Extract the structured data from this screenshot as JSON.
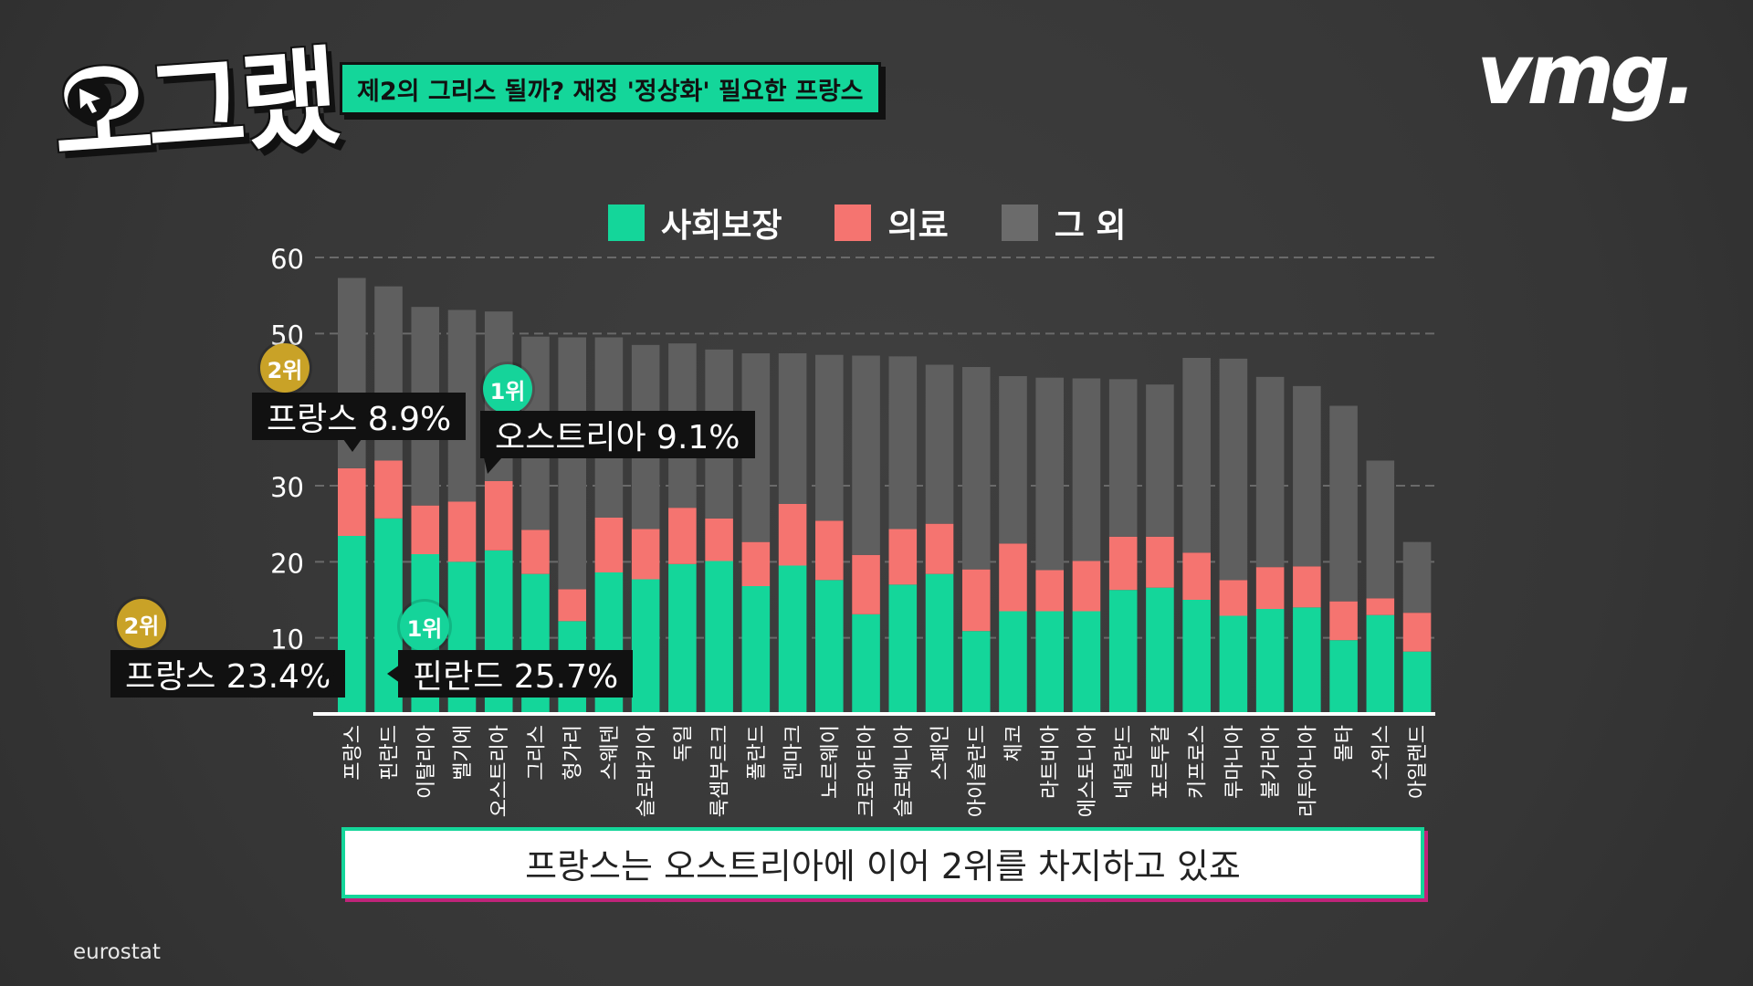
{
  "logo": {
    "text": "오그랬"
  },
  "topic": "제2의 그리스 될까? 재정 '정상화' 필요한 프랑스",
  "brand": "vmg.",
  "colors": {
    "social": "#14d69a",
    "health": "#f57470",
    "other": "#5f5f5f",
    "gold": "#c9a227"
  },
  "legend": [
    {
      "label": "사회보장",
      "color": "#14d69a"
    },
    {
      "label": "의료",
      "color": "#f57470"
    },
    {
      "label": "그 외",
      "color": "#6b6b6b"
    }
  ],
  "chart_data": {
    "type": "bar",
    "stacked": true,
    "title": "",
    "xlabel": "",
    "ylabel": "",
    "ylim": [
      0,
      60
    ],
    "yticks": [
      10,
      20,
      30,
      50,
      60
    ],
    "grid": true,
    "legend_position": "top",
    "categories": [
      "프랑스",
      "핀란드",
      "이탈리아",
      "벨기에",
      "오스트리아",
      "그리스",
      "헝가리",
      "스웨덴",
      "슬로바키아",
      "독일",
      "룩셈부르크",
      "폴란드",
      "덴마크",
      "노르웨이",
      "크로아티아",
      "슬로베니아",
      "스페인",
      "아이슬란드",
      "체코",
      "라트비아",
      "에스토니아",
      "네덜란드",
      "포르투갈",
      "키프로스",
      "루마니아",
      "불가리아",
      "리투아니아",
      "몰타",
      "스위스",
      "아일랜드"
    ],
    "series": [
      {
        "name": "사회보장",
        "values": [
          23.4,
          25.7,
          21.0,
          20.0,
          21.5,
          18.4,
          12.2,
          18.6,
          17.7,
          19.7,
          20.1,
          16.8,
          19.5,
          17.6,
          13.1,
          17.0,
          18.4,
          10.9,
          13.5,
          13.5,
          13.5,
          16.3,
          16.6,
          15.0,
          12.9,
          13.8,
          14.0,
          9.7,
          13.0,
          8.2
        ]
      },
      {
        "name": "의료",
        "values": [
          8.9,
          7.6,
          6.4,
          7.9,
          9.1,
          5.8,
          4.2,
          7.2,
          6.6,
          7.4,
          5.6,
          5.8,
          8.1,
          7.8,
          7.8,
          7.3,
          6.6,
          8.1,
          8.9,
          5.4,
          6.6,
          7.0,
          6.7,
          6.2,
          4.7,
          5.5,
          5.4,
          5.1,
          2.2,
          5.1
        ]
      },
      {
        "name": "그 외",
        "values": [
          25.0,
          22.9,
          26.1,
          25.2,
          22.3,
          25.4,
          33.1,
          23.7,
          24.2,
          21.6,
          22.2,
          24.8,
          19.8,
          21.8,
          26.2,
          22.7,
          20.9,
          26.6,
          22.0,
          25.3,
          24.0,
          20.7,
          20.0,
          25.6,
          29.1,
          25.0,
          23.7,
          25.7,
          18.1,
          9.3
        ]
      }
    ],
    "annotations": [
      {
        "category": "프랑스",
        "series": "의료",
        "rank": "2위",
        "text": "프랑스 8.9%"
      },
      {
        "category": "오스트리아",
        "series": "의료",
        "rank": "1위",
        "text": "오스트리아 9.1%"
      },
      {
        "category": "프랑스",
        "series": "사회보장",
        "rank": "2위",
        "text": "프랑스 23.4%"
      },
      {
        "category": "핀란드",
        "series": "사회보장",
        "rank": "1위",
        "text": "핀란드 25.7%"
      }
    ]
  },
  "subtitle": "프랑스는 오스트리아에 이어 2위를 차지하고 있죠",
  "source": "eurostat"
}
